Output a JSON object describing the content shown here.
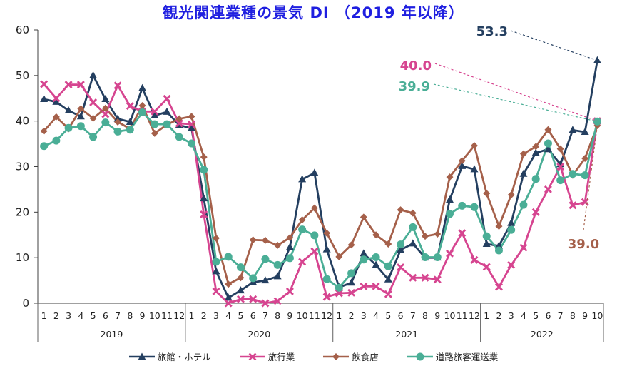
{
  "chart_data": {
    "type": "line",
    "title": "観光関連業種の景気 DI （2019 年以降）",
    "ylim": [
      0,
      60
    ],
    "yticks": [
      0,
      10,
      20,
      30,
      40,
      50,
      60
    ],
    "month_labels": [
      "1",
      "2",
      "3",
      "4",
      "5",
      "6",
      "7",
      "8",
      "9",
      "10",
      "11",
      "12",
      "1",
      "2",
      "3",
      "4",
      "5",
      "6",
      "7",
      "8",
      "9",
      "10",
      "11",
      "12",
      "1",
      "2",
      "3",
      "4",
      "5",
      "6",
      "7",
      "8",
      "9",
      "10",
      "11",
      "12",
      "1",
      "2",
      "3",
      "4",
      "5",
      "6",
      "7",
      "8",
      "9",
      "10"
    ],
    "years": [
      {
        "label": "2019",
        "start": 0,
        "count": 12
      },
      {
        "label": "2020",
        "start": 12,
        "count": 12
      },
      {
        "label": "2021",
        "start": 24,
        "count": 12
      },
      {
        "label": "2022",
        "start": 36,
        "count": 10
      }
    ],
    "series": [
      {
        "name": "旅館・ホテル",
        "color": "#243f60",
        "marker": "triangle",
        "values": [
          44.8,
          44.2,
          42.3,
          41.0,
          50.0,
          44.8,
          40.5,
          39.8,
          47.2,
          41.2,
          42.0,
          39.1,
          38.4,
          23.0,
          7.0,
          1.2,
          2.8,
          4.6,
          5.0,
          5.9,
          12.3,
          27.2,
          28.6,
          11.8,
          3.5,
          4.5,
          10.9,
          8.4,
          5.2,
          11.7,
          13.1,
          10.0,
          10.0,
          22.7,
          30.1,
          29.4,
          13.0,
          12.6,
          17.6,
          28.4,
          33.0,
          33.8,
          30.5,
          38.0,
          37.6,
          53.3
        ]
      },
      {
        "name": "旅行業",
        "color": "#d64590",
        "marker": "x",
        "values": [
          48.1,
          45.0,
          48.0,
          48.0,
          44.1,
          41.5,
          47.8,
          43.3,
          42.1,
          42.1,
          44.9,
          39.5,
          39.3,
          19.5,
          2.6,
          0.0,
          0.9,
          0.9,
          0.0,
          0.5,
          2.6,
          9.1,
          11.4,
          1.4,
          2.2,
          2.3,
          3.7,
          3.7,
          2.0,
          7.9,
          5.6,
          5.6,
          5.2,
          10.9,
          15.4,
          9.5,
          8.0,
          3.6,
          8.4,
          12.2,
          20.0,
          25.0,
          30.0,
          21.5,
          22.2,
          40.0
        ]
      },
      {
        "name": "飲食店",
        "color": "#a5604a",
        "marker": "diamond",
        "values": [
          37.8,
          40.9,
          38.3,
          42.7,
          40.6,
          42.8,
          39.8,
          38.3,
          43.4,
          37.3,
          39.2,
          40.5,
          41.0,
          32.1,
          14.3,
          4.2,
          5.6,
          13.9,
          13.8,
          12.7,
          14.4,
          18.3,
          20.9,
          15.4,
          10.2,
          12.8,
          18.9,
          15.0,
          13.0,
          20.5,
          19.8,
          14.7,
          15.2,
          27.7,
          31.3,
          34.6,
          24.1,
          16.9,
          23.8,
          32.8,
          34.4,
          38.1,
          33.9,
          28.1,
          31.8,
          39.0
        ]
      },
      {
        "name": "道路旅客運送業",
        "color": "#4aae96",
        "marker": "circle",
        "values": [
          34.5,
          35.7,
          38.5,
          38.9,
          36.5,
          39.7,
          37.7,
          38.1,
          41.9,
          39.3,
          39.3,
          36.5,
          35.1,
          29.3,
          9.1,
          10.2,
          7.9,
          5.5,
          9.7,
          8.4,
          9.9,
          16.2,
          14.9,
          5.3,
          3.4,
          6.6,
          9.6,
          10.1,
          8.1,
          12.9,
          16.7,
          10.1,
          10.1,
          19.6,
          21.4,
          21.1,
          14.7,
          11.6,
          16.1,
          21.6,
          27.3,
          35.1,
          27.0,
          28.4,
          28.1,
          39.9
        ]
      }
    ],
    "annotations": [
      {
        "text": "53.3",
        "series": 0,
        "color": "#243f60"
      },
      {
        "text": "40.0",
        "series": 1,
        "color": "#d64590"
      },
      {
        "text": "39.9",
        "series": 3,
        "color": "#4aae96"
      },
      {
        "text": "39.0",
        "series": 2,
        "color": "#a5604a"
      }
    ]
  }
}
